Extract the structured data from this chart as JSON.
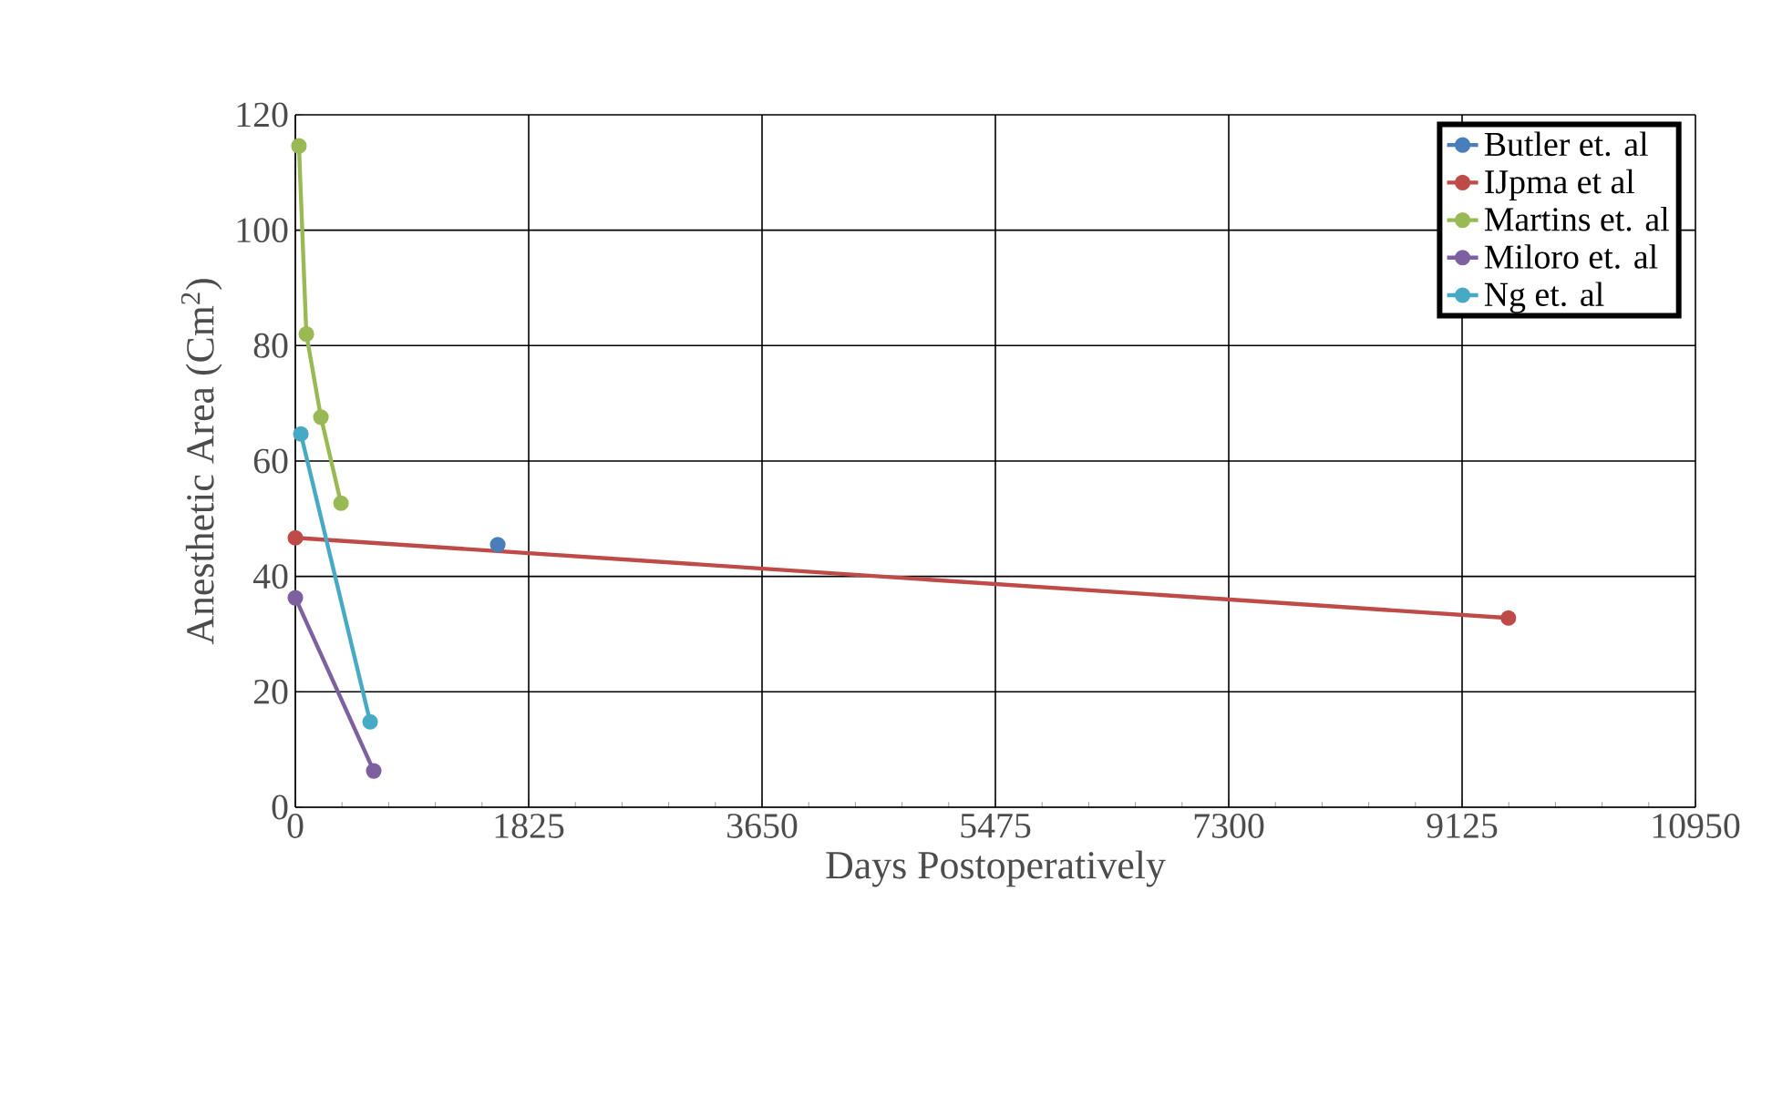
{
  "chart_data": {
    "type": "line",
    "xlabel": "Days Postoperatively",
    "ylabel": "Anesthetic Area (Cm$^{2}$)",
    "xlim": [
      0,
      10950
    ],
    "xticks": [
      0,
      1825,
      3650,
      5475,
      7300,
      9125,
      10950
    ],
    "ylim": [
      0,
      120
    ],
    "yticks": [
      0,
      20,
      40,
      60,
      80,
      100,
      120
    ],
    "grid": true,
    "legend": "top right",
    "marker": "circle",
    "line_style": "solid",
    "series": [
      {
        "name": "Butler et. al",
        "color": "#4a7ebb",
        "x": [
          1583
        ],
        "values": [
          45.5
        ]
      },
      {
        "name": "IJpma et al",
        "color": "#be4b48",
        "x": [
          0,
          9487
        ],
        "values": [
          46.7,
          32.8
        ]
      },
      {
        "name": "Martins  et. al",
        "color": "#98b954",
        "x": [
          28,
          86,
          200,
          357
        ],
        "values": [
          114.6,
          82,
          67.6,
          52.7
        ]
      },
      {
        "name": "Miloro  et. al",
        "color": "#7d60a0",
        "x": [
          0,
          613
        ],
        "values": [
          36.3,
          6.3
        ]
      },
      {
        "name": "Ng et. al",
        "color": "#46aac5",
        "x": [
          43,
          585
        ],
        "values": [
          64.7,
          14.8
        ]
      }
    ]
  }
}
